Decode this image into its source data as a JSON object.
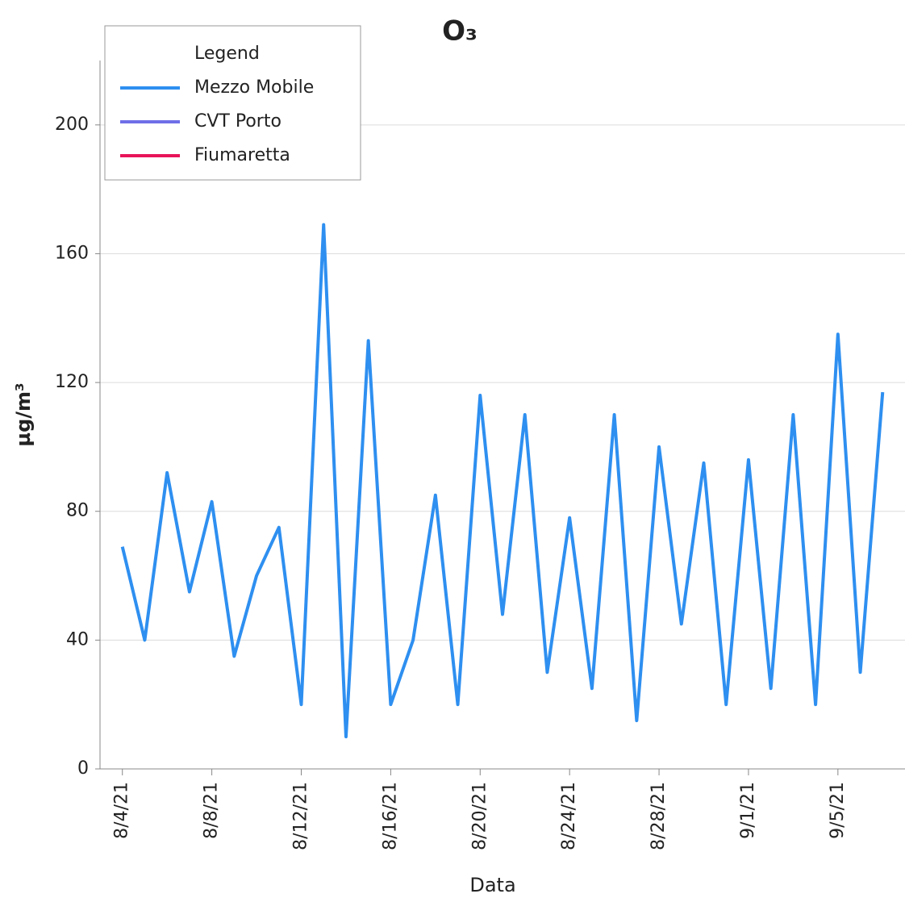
{
  "chart_data": {
    "type": "line",
    "title": "O₃",
    "x_label": "Data",
    "y_label": "µg/m³",
    "legend_title": "Legend",
    "legend_position": "upper left",
    "grid": true,
    "x": [
      "2021-08-04",
      "2021-08-05",
      "2021-08-06",
      "2021-08-07",
      "2021-08-08",
      "2021-08-09",
      "2021-08-10",
      "2021-08-11",
      "2021-08-12",
      "2021-08-13",
      "2021-08-14",
      "2021-08-15",
      "2021-08-16",
      "2021-08-17",
      "2021-08-18",
      "2021-08-19",
      "2021-08-20",
      "2021-08-21",
      "2021-08-22",
      "2021-08-23",
      "2021-08-24",
      "2021-08-25",
      "2021-08-26",
      "2021-08-27",
      "2021-08-28",
      "2021-08-29",
      "2021-08-30",
      "2021-08-31",
      "2021-09-01",
      "2021-09-02",
      "2021-09-03",
      "2021-09-04",
      "2021-09-05",
      "2021-09-06",
      "2021-09-07"
    ],
    "series": [
      {
        "name": "Mezzo Mobile",
        "color": "#2e8ff0",
        "values": [
          69,
          40,
          92,
          55,
          83,
          35,
          60,
          75,
          20,
          169,
          10,
          133,
          20,
          40,
          85,
          20,
          116,
          48,
          110,
          30,
          78,
          25,
          110,
          15,
          100,
          45,
          95,
          20,
          96,
          25,
          110,
          20,
          135,
          30,
          117
        ]
      },
      {
        "name": "CVT Porto",
        "color": "#6f6fe8",
        "values": [
          null,
          null,
          null,
          null,
          null,
          null,
          null,
          null,
          null,
          null,
          null,
          null,
          null,
          null,
          null,
          null,
          null,
          null,
          null,
          null,
          null,
          null,
          null,
          null,
          null,
          null,
          null,
          null,
          null,
          null,
          null,
          null,
          null,
          null,
          null
        ]
      },
      {
        "name": "Fiumaretta",
        "color": "#e8145a",
        "values": [
          null,
          null,
          null,
          null,
          null,
          null,
          null,
          null,
          null,
          null,
          null,
          null,
          null,
          null,
          null,
          null,
          null,
          null,
          null,
          null,
          null,
          null,
          null,
          null,
          null,
          null,
          null,
          null,
          null,
          null,
          null,
          null,
          null,
          null,
          null
        ]
      }
    ],
    "xlim": [
      "2021-08-03",
      "2021-09-08"
    ],
    "xticks": [
      {
        "value": "2021-08-04",
        "label": "8/4/21"
      },
      {
        "value": "2021-08-08",
        "label": "8/8/21"
      },
      {
        "value": "2021-08-12",
        "label": "8/12/21"
      },
      {
        "value": "2021-08-16",
        "label": "8/16/21"
      },
      {
        "value": "2021-08-20",
        "label": "8/20/21"
      },
      {
        "value": "2021-08-24",
        "label": "8/24/21"
      },
      {
        "value": "2021-08-28",
        "label": "8/28/21"
      },
      {
        "value": "2021-09-01",
        "label": "9/1/21"
      },
      {
        "value": "2021-09-05",
        "label": "9/5/21"
      }
    ],
    "ylim": [
      0,
      220
    ],
    "yticks": [
      0,
      40,
      80,
      120,
      160,
      200
    ]
  }
}
